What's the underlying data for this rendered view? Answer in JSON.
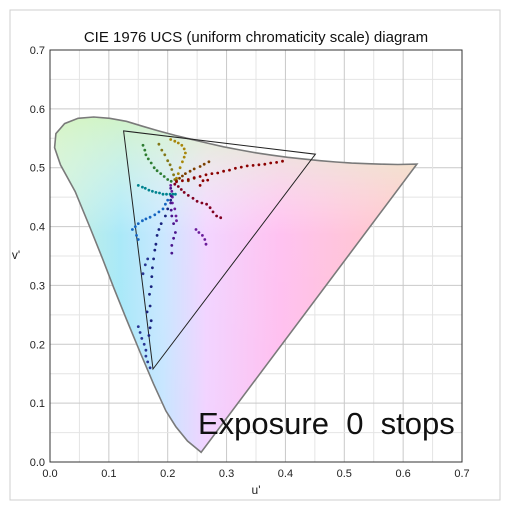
{
  "chart_data": {
    "type": "scatter",
    "title": "CIE 1976 UCS (uniform chromaticity scale) diagram",
    "xlabel": "u'",
    "ylabel": "v'",
    "xlim": [
      0.0,
      0.7
    ],
    "ylim": [
      0.0,
      0.7
    ],
    "xticks": [
      "0.0",
      "0.1",
      "0.2",
      "0.3",
      "0.4",
      "0.5",
      "0.6",
      "0.7"
    ],
    "yticks": [
      "0.0",
      "0.1",
      "0.2",
      "0.3",
      "0.4",
      "0.5",
      "0.6",
      "0.7"
    ],
    "grid": true,
    "annotation": "Exposure  0  stops",
    "spectral_locus": [
      [
        0.2568,
        0.0165
      ],
      [
        0.2337,
        0.0356
      ],
      [
        0.2137,
        0.0602
      ],
      [
        0.197,
        0.0869
      ],
      [
        0.176,
        0.1324
      ],
      [
        0.1532,
        0.186
      ],
      [
        0.1295,
        0.2434
      ],
      [
        0.1083,
        0.2961
      ],
      [
        0.0892,
        0.3456
      ],
      [
        0.0676,
        0.3993
      ],
      [
        0.0429,
        0.4594
      ],
      [
        0.0179,
        0.5047
      ],
      [
        0.0079,
        0.5342
      ],
      [
        0.01,
        0.5579
      ],
      [
        0.0248,
        0.5749
      ],
      [
        0.0478,
        0.584
      ],
      [
        0.0742,
        0.5861
      ],
      [
        0.1015,
        0.584
      ],
      [
        0.1296,
        0.5789
      ],
      [
        0.1577,
        0.5704
      ],
      [
        0.185,
        0.5623
      ],
      [
        0.2127,
        0.5549
      ],
      [
        0.24,
        0.5482
      ],
      [
        0.2674,
        0.5418
      ],
      [
        0.295,
        0.5356
      ],
      [
        0.3221,
        0.5302
      ],
      [
        0.3497,
        0.5254
      ],
      [
        0.377,
        0.5212
      ],
      [
        0.4037,
        0.5177
      ],
      [
        0.4319,
        0.5146
      ],
      [
        0.4589,
        0.5119
      ],
      [
        0.4859,
        0.5097
      ],
      [
        0.5125,
        0.5079
      ],
      [
        0.5392,
        0.5069
      ],
      [
        0.5669,
        0.506
      ],
      [
        0.591,
        0.5054
      ],
      [
        0.6234,
        0.5061
      ]
    ],
    "gamut_triangle": [
      [
        0.125,
        0.5625
      ],
      [
        0.451,
        0.523
      ],
      [
        0.175,
        0.158
      ]
    ],
    "series": [
      {
        "color": "#1a237e",
        "points": [
          [
            0.168,
            0.215
          ],
          [
            0.17,
            0.228
          ],
          [
            0.172,
            0.24
          ],
          [
            0.165,
            0.255
          ],
          [
            0.17,
            0.265
          ],
          [
            0.169,
            0.285
          ],
          [
            0.172,
            0.298
          ],
          [
            0.173,
            0.315
          ],
          [
            0.174,
            0.33
          ],
          [
            0.176,
            0.345
          ],
          [
            0.178,
            0.36
          ],
          [
            0.18,
            0.37
          ],
          [
            0.182,
            0.385
          ],
          [
            0.185,
            0.395
          ],
          [
            0.189,
            0.405
          ],
          [
            0.196,
            0.418
          ],
          [
            0.2,
            0.43
          ],
          [
            0.205,
            0.445
          ]
        ]
      },
      {
        "color": "#283593",
        "points": [
          [
            0.15,
            0.23
          ],
          [
            0.153,
            0.22
          ],
          [
            0.156,
            0.21
          ],
          [
            0.16,
            0.2
          ],
          [
            0.163,
            0.19
          ],
          [
            0.163,
            0.18
          ],
          [
            0.166,
            0.17
          ],
          [
            0.17,
            0.16
          ],
          [
            0.158,
            0.32
          ],
          [
            0.162,
            0.335
          ],
          [
            0.166,
            0.345
          ]
        ]
      },
      {
        "color": "#1565c0",
        "points": [
          [
            0.14,
            0.395
          ],
          [
            0.145,
            0.4
          ],
          [
            0.15,
            0.405
          ],
          [
            0.157,
            0.41
          ],
          [
            0.163,
            0.413
          ],
          [
            0.17,
            0.416
          ],
          [
            0.178,
            0.42
          ],
          [
            0.185,
            0.425
          ],
          [
            0.192,
            0.43
          ],
          [
            0.196,
            0.438
          ],
          [
            0.2,
            0.445
          ],
          [
            0.147,
            0.385
          ],
          [
            0.15,
            0.378
          ]
        ]
      },
      {
        "color": "#00838f",
        "points": [
          [
            0.15,
            0.47
          ],
          [
            0.157,
            0.467
          ],
          [
            0.162,
            0.465
          ],
          [
            0.168,
            0.462
          ],
          [
            0.174,
            0.46
          ],
          [
            0.18,
            0.458
          ],
          [
            0.186,
            0.457
          ],
          [
            0.192,
            0.455
          ],
          [
            0.198,
            0.455
          ],
          [
            0.204,
            0.455
          ],
          [
            0.209,
            0.455
          ],
          [
            0.213,
            0.455
          ]
        ]
      },
      {
        "color": "#2e7d32",
        "points": [
          [
            0.158,
            0.538
          ],
          [
            0.161,
            0.53
          ],
          [
            0.163,
            0.522
          ],
          [
            0.167,
            0.515
          ],
          [
            0.172,
            0.508
          ],
          [
            0.177,
            0.5
          ],
          [
            0.182,
            0.495
          ],
          [
            0.188,
            0.49
          ],
          [
            0.194,
            0.485
          ],
          [
            0.2,
            0.48
          ],
          [
            0.206,
            0.477
          ]
        ]
      },
      {
        "color": "#827717",
        "points": [
          [
            0.185,
            0.54
          ],
          [
            0.19,
            0.53
          ],
          [
            0.195,
            0.522
          ],
          [
            0.2,
            0.512
          ],
          [
            0.204,
            0.505
          ],
          [
            0.207,
            0.497
          ],
          [
            0.21,
            0.488
          ],
          [
            0.212,
            0.48
          ]
        ]
      },
      {
        "color": "#a8860a",
        "points": [
          [
            0.205,
            0.548
          ],
          [
            0.212,
            0.545
          ],
          [
            0.218,
            0.542
          ],
          [
            0.224,
            0.538
          ],
          [
            0.228,
            0.532
          ],
          [
            0.23,
            0.525
          ],
          [
            0.228,
            0.518
          ],
          [
            0.225,
            0.51
          ],
          [
            0.221,
            0.5
          ],
          [
            0.218,
            0.49
          ],
          [
            0.215,
            0.482
          ]
        ]
      },
      {
        "color": "#7b3f00",
        "points": [
          [
            0.215,
            0.478
          ],
          [
            0.22,
            0.482
          ],
          [
            0.225,
            0.486
          ],
          [
            0.23,
            0.49
          ],
          [
            0.238,
            0.494
          ],
          [
            0.245,
            0.498
          ],
          [
            0.255,
            0.502
          ],
          [
            0.262,
            0.506
          ],
          [
            0.27,
            0.51
          ],
          [
            0.235,
            0.478
          ],
          [
            0.245,
            0.482
          ]
        ]
      },
      {
        "color": "#8b0000",
        "points": [
          [
            0.215,
            0.476
          ],
          [
            0.225,
            0.478
          ],
          [
            0.235,
            0.48
          ],
          [
            0.245,
            0.483
          ],
          [
            0.255,
            0.485
          ],
          [
            0.265,
            0.488
          ],
          [
            0.275,
            0.49
          ],
          [
            0.285,
            0.491
          ],
          [
            0.295,
            0.494
          ],
          [
            0.305,
            0.496
          ],
          [
            0.315,
            0.499
          ],
          [
            0.325,
            0.501
          ],
          [
            0.335,
            0.503
          ],
          [
            0.345,
            0.504
          ],
          [
            0.355,
            0.505
          ],
          [
            0.365,
            0.506
          ],
          [
            0.375,
            0.508
          ],
          [
            0.385,
            0.509
          ],
          [
            0.395,
            0.511
          ],
          [
            0.255,
            0.47
          ],
          [
            0.26,
            0.478
          ],
          [
            0.268,
            0.479
          ]
        ]
      },
      {
        "color": "#800020",
        "points": [
          [
            0.212,
            0.472
          ],
          [
            0.218,
            0.468
          ],
          [
            0.223,
            0.463
          ],
          [
            0.228,
            0.458
          ],
          [
            0.235,
            0.453
          ],
          [
            0.243,
            0.448
          ],
          [
            0.25,
            0.443
          ],
          [
            0.258,
            0.44
          ],
          [
            0.266,
            0.438
          ],
          [
            0.272,
            0.432
          ],
          [
            0.277,
            0.425
          ],
          [
            0.283,
            0.418
          ],
          [
            0.29,
            0.415
          ]
        ]
      },
      {
        "color": "#6a1b9a",
        "points": [
          [
            0.205,
            0.47
          ],
          [
            0.207,
            0.46
          ],
          [
            0.208,
            0.45
          ],
          [
            0.208,
            0.44
          ],
          [
            0.212,
            0.43
          ],
          [
            0.214,
            0.418
          ],
          [
            0.215,
            0.41
          ],
          [
            0.248,
            0.395
          ],
          [
            0.253,
            0.39
          ],
          [
            0.259,
            0.385
          ],
          [
            0.263,
            0.378
          ],
          [
            0.265,
            0.37
          ]
        ]
      },
      {
        "color": "#4a148c",
        "points": [
          [
            0.205,
            0.465
          ],
          [
            0.206,
            0.452
          ],
          [
            0.205,
            0.44
          ],
          [
            0.206,
            0.428
          ],
          [
            0.207,
            0.418
          ],
          [
            0.21,
            0.405
          ],
          [
            0.213,
            0.39
          ],
          [
            0.21,
            0.38
          ],
          [
            0.207,
            0.368
          ],
          [
            0.207,
            0.355
          ]
        ]
      }
    ]
  }
}
